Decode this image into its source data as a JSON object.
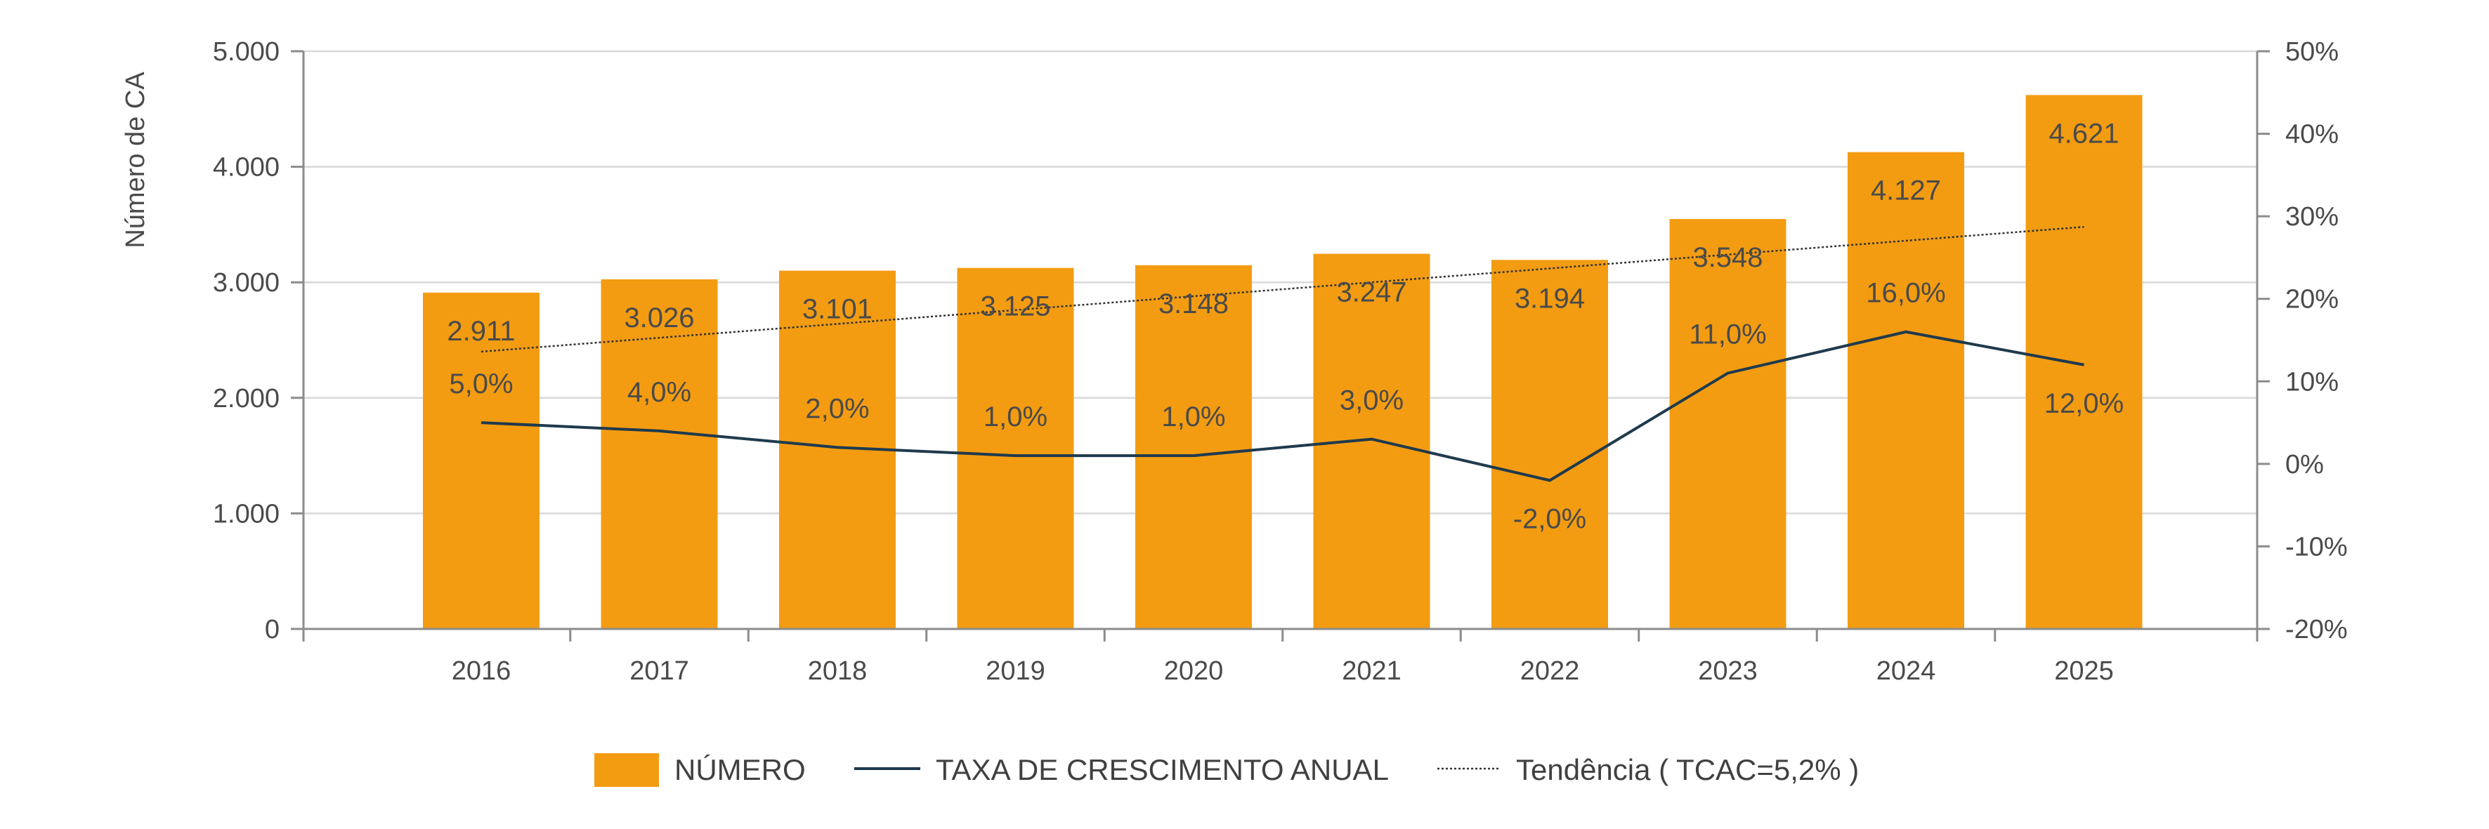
{
  "chart_data": {
    "type": "bar",
    "categories": [
      "2016",
      "2017",
      "2018",
      "2019",
      "2020",
      "2021",
      "2022",
      "2023",
      "2024",
      "2025"
    ],
    "series": [
      {
        "name": "NÚMERO",
        "type": "bar",
        "axis": "left",
        "color": "#F39C12",
        "values": [
          2911,
          3026,
          3101,
          3125,
          3148,
          3247,
          3194,
          3548,
          4127,
          4621
        ],
        "labels": [
          "2.911",
          "3.026",
          "3.101",
          "3.125",
          "3.148",
          "3.247",
          "3.194",
          "3.548",
          "4.127",
          "4.621"
        ]
      },
      {
        "name": "TAXA DE CRESCIMENTO ANUAL",
        "type": "line",
        "axis": "right",
        "color": "#1F3A4D",
        "values": [
          5,
          4,
          2,
          1,
          1,
          3,
          -2,
          11,
          16,
          12
        ],
        "labels": [
          "5,0%",
          "4,0%",
          "2,0%",
          "1,0%",
          "1,0%",
          "3,0%",
          "-2,0%",
          "11,0%",
          "16,0%",
          "12,0%"
        ]
      },
      {
        "name": "Tendência ( TCAC=5,2% )",
        "type": "trend",
        "axis": "left",
        "style": "dotted",
        "color": "#333333",
        "values": [
          2400,
          2520,
          2640,
          2760,
          2880,
          3000,
          3120,
          3240,
          3360,
          3480
        ]
      }
    ],
    "left_axis": {
      "title": "Número de CA",
      "ylim": [
        0,
        5000
      ],
      "ticks": [
        0,
        1000,
        2000,
        3000,
        4000,
        5000
      ],
      "tick_labels": [
        "0",
        "1.000",
        "2.000",
        "3.000",
        "4.000",
        "5.000"
      ]
    },
    "right_axis": {
      "ylim": [
        -20,
        50
      ],
      "ticks": [
        -20,
        -10,
        0,
        10,
        20,
        30,
        40,
        50
      ],
      "tick_labels": [
        "-20%",
        "-10%",
        "0%",
        "10%",
        "20%",
        "30%",
        "40%",
        "50%"
      ]
    },
    "grid": true,
    "legend_position": "bottom-center"
  }
}
